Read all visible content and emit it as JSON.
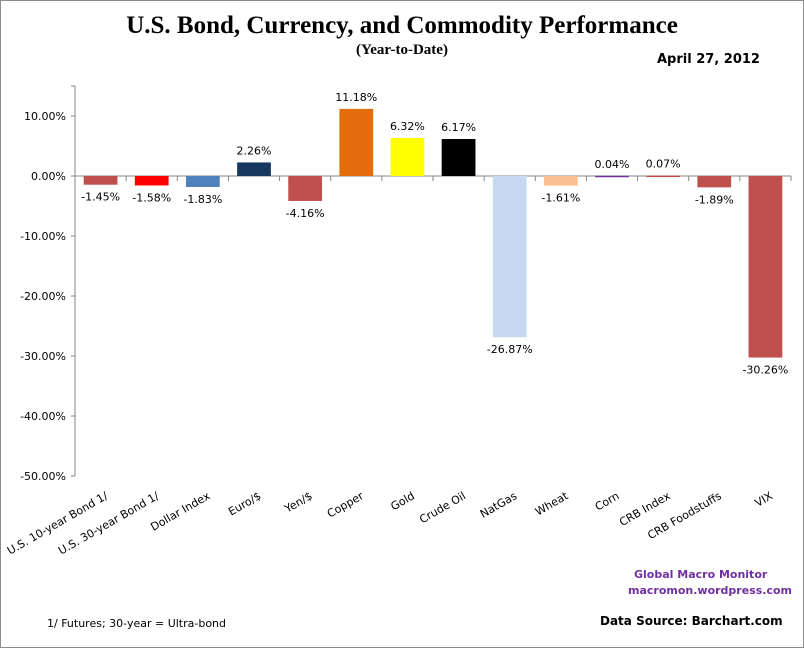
{
  "header": {
    "title": "U.S. Bond, Currency, and Commodity Performance",
    "subtitle": "(Year-to-Date)",
    "date": "April 27, 2012"
  },
  "footer": {
    "brand": "Global Macro Monitor",
    "brand_url": "macromon.wordpress.com",
    "footnote": "1/  Futures; 30-year = Ultra-bond",
    "source": "Data Source:  Barchart.com",
    "brand_color": "#7030a0"
  },
  "chart_data": {
    "type": "bar",
    "title": "U.S. Bond, Currency, and Commodity Performance",
    "subtitle": "(Year-to-Date)",
    "xlabel": "",
    "ylabel": "",
    "ylim": [
      -50,
      15
    ],
    "yticks": [
      10,
      0,
      -10,
      -20,
      -30,
      -40,
      -50
    ],
    "ytick_labels": [
      "10.00%",
      "0.00%",
      "-10.00%",
      "-20.00%",
      "-30.00%",
      "-40.00%",
      "-50.00%"
    ],
    "grid": false,
    "legend": "none",
    "categories": [
      "U.S. 10-year Bond 1/",
      "U.S. 30-year Bond 1/",
      "Dollar Index",
      "Euro/$",
      "Yen/$",
      "Copper",
      "Gold",
      "Crude Oil",
      "NatGas",
      "Wheat",
      "Corn",
      "CRB Index",
      "CRB Foodstuffs",
      "VIX"
    ],
    "values": [
      -1.45,
      -1.58,
      -1.83,
      2.26,
      -4.16,
      11.18,
      6.32,
      6.17,
      -26.87,
      -1.61,
      0.04,
      0.07,
      -1.89,
      -30.26
    ],
    "value_labels": [
      "-1.45%",
      "-1.58%",
      "-1.83%",
      "2.26%",
      "-4.16%",
      "11.18%",
      "6.32%",
      "6.17%",
      "-26.87%",
      "-1.61%",
      "0.04%",
      "0.07%",
      "-1.89%",
      "-30.26%"
    ],
    "colors": [
      "#c0504d",
      "#ff0000",
      "#4f81bd",
      "#17375e",
      "#c0504d",
      "#e46c0a",
      "#ffff00",
      "#000000",
      "#c6d9f1",
      "#fac090",
      "#7030a0",
      "#c0504d",
      "#c0504d",
      "#c0504d"
    ]
  }
}
